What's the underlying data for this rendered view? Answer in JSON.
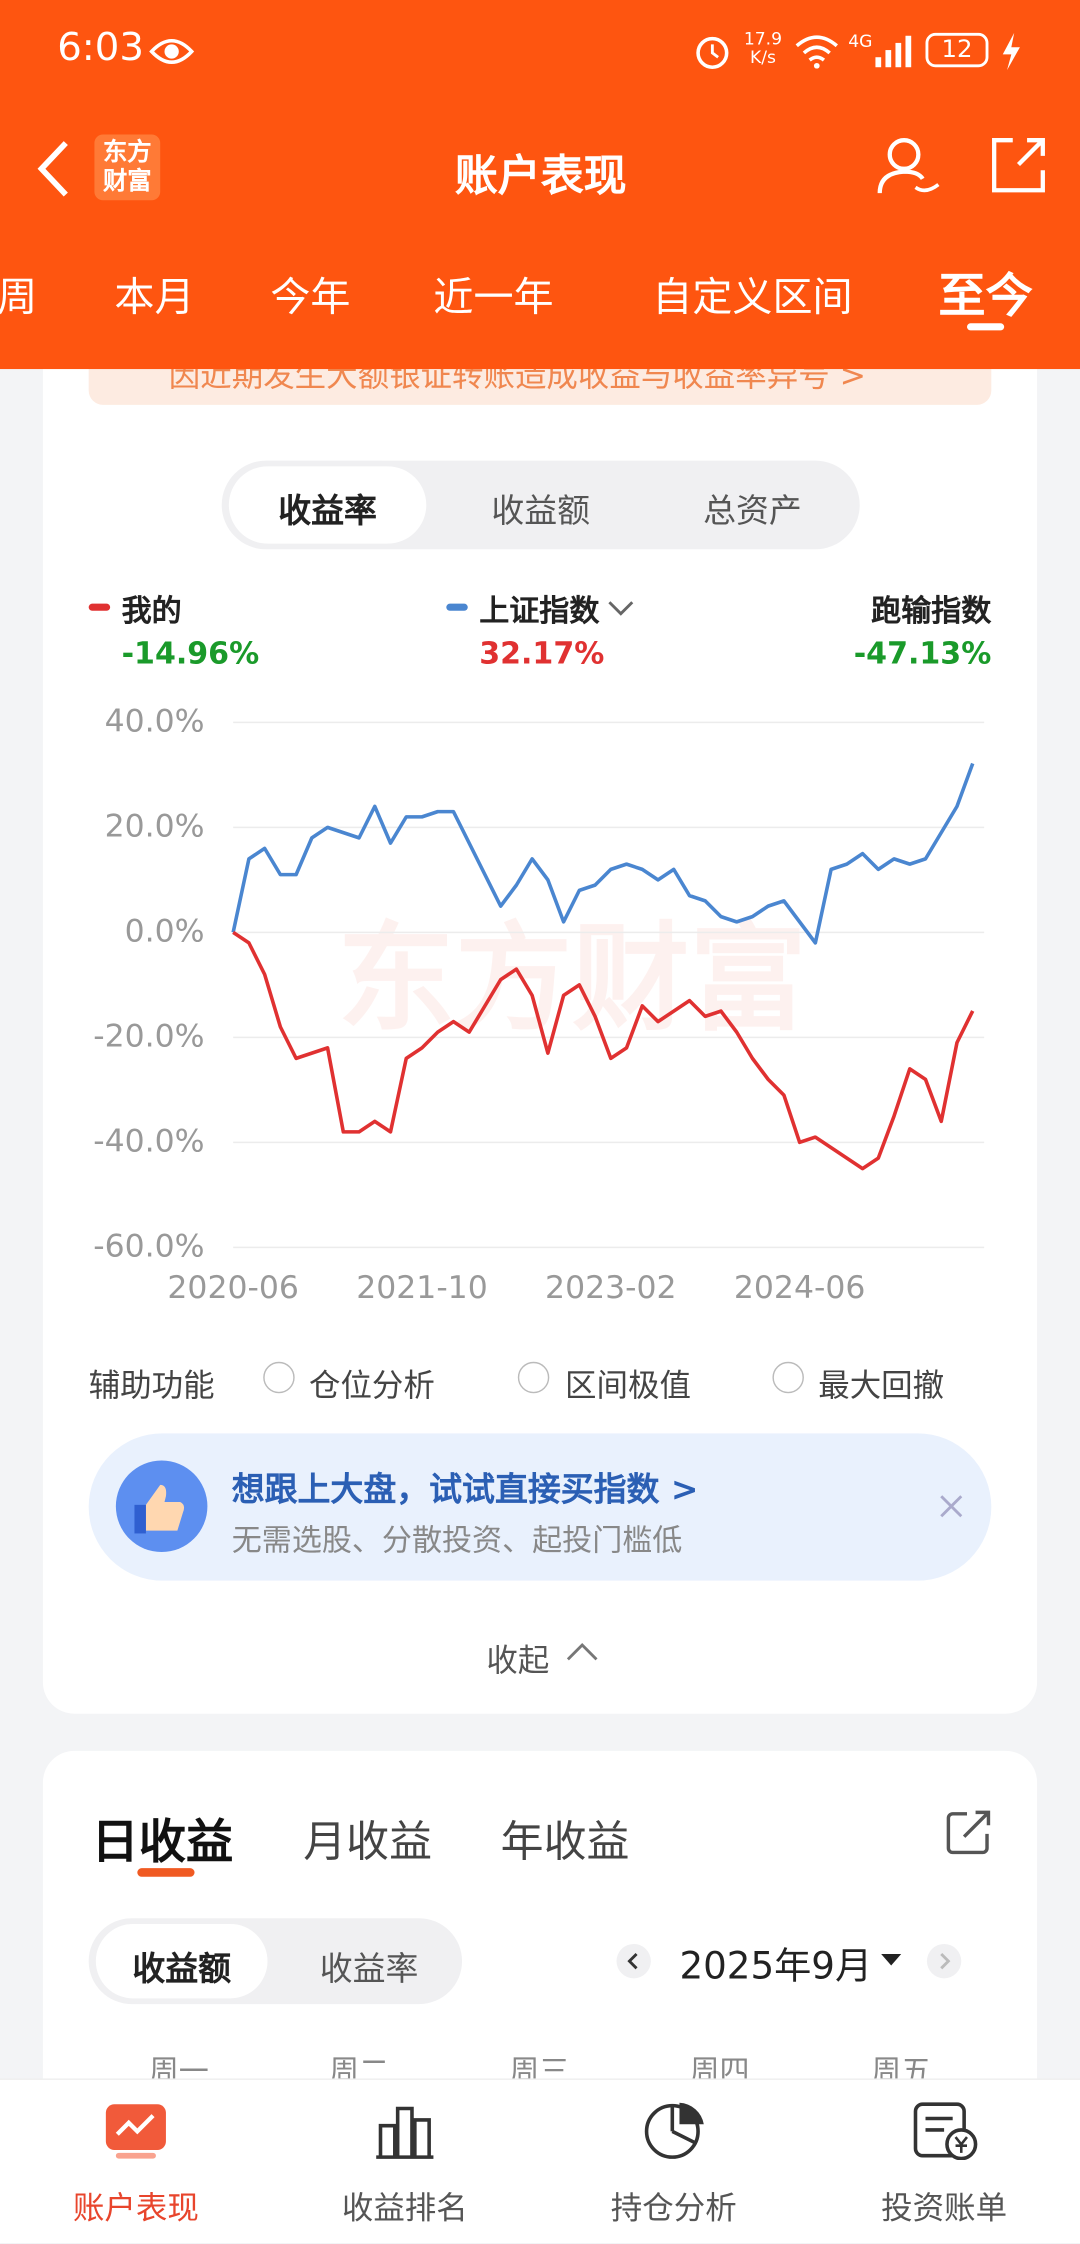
{
  "status": {
    "time": "6:03",
    "speed_value": "17.9",
    "speed_unit": "K/s",
    "signal": "4G",
    "battery": "12"
  },
  "header": {
    "logo_top": "东方",
    "logo_bottom": "财富",
    "title": "账户表现"
  },
  "period_tabs": [
    "周",
    "本月",
    "今年",
    "近一年",
    "自定义区间",
    "至今"
  ],
  "notice": "因近期发生大额银证转账造成收益与收益率异号 >",
  "metric_tabs": [
    "收益率",
    "收益额",
    "总资产"
  ],
  "relative": {
    "name": "跑输指数",
    "value": "-47.13%"
  },
  "chart_data": {
    "type": "line",
    "watermark": "东方财富",
    "categories": [
      "2020-06",
      null,
      null,
      null,
      null,
      null,
      null,
      null,
      null,
      null,
      null,
      null,
      "2021-10",
      null,
      null,
      null,
      null,
      null,
      null,
      null,
      null,
      null,
      null,
      null,
      "2023-02",
      null,
      null,
      null,
      null,
      null,
      null,
      null,
      null,
      null,
      null,
      null,
      "2024-06",
      null,
      null,
      null,
      null,
      null,
      null,
      null,
      null,
      null,
      null,
      null
    ],
    "series": [
      {
        "name": "我的",
        "color": "#e03131",
        "summary": "-14.96%",
        "summary_color": "#1a9a2a",
        "values": [
          0,
          -2,
          -8,
          -18,
          -24,
          -23,
          -22,
          -38,
          -38,
          -36,
          -38,
          -24,
          -22,
          -19,
          -17,
          -19,
          -14,
          -9,
          -7,
          -12,
          -23,
          -12,
          -10,
          -16,
          -24,
          -22,
          -14,
          -17,
          -15,
          -13,
          -16,
          -15,
          -19,
          -24,
          -28,
          -31,
          -40,
          -39,
          -41,
          -43,
          -45,
          -43,
          -35,
          -26,
          -28,
          -36,
          -21,
          -14.96
        ]
      },
      {
        "name": "上证指数",
        "color": "#4a86d0",
        "summary": "32.17%",
        "summary_color": "#e03131",
        "values": [
          0,
          14,
          16,
          11,
          11,
          18,
          20,
          19,
          18,
          24,
          17,
          22,
          22,
          23,
          23,
          17,
          11,
          5,
          9,
          14,
          10,
          2,
          8,
          9,
          12,
          13,
          12,
          10,
          12,
          7,
          6,
          3,
          2,
          3,
          5,
          6,
          2,
          -2,
          12,
          13,
          15,
          12,
          14,
          13,
          14,
          19,
          24,
          32.17
        ]
      }
    ],
    "ylim": [
      -60,
      40
    ],
    "yticks": [
      {
        "value": -60,
        "label": "-60.0%"
      },
      {
        "value": -40,
        "label": "-40.0%"
      },
      {
        "value": -20,
        "label": "-20.0%"
      },
      {
        "value": 0,
        "label": "0.0%"
      },
      {
        "value": 20,
        "label": "20.0%"
      },
      {
        "value": 40,
        "label": "40.0%"
      }
    ],
    "grid": true
  },
  "aux": {
    "label": "辅助功能",
    "options": [
      "仓位分析",
      "区间极值",
      "最大回撤"
    ]
  },
  "banner": {
    "title": "想跟上大盘，试试直接买指数 >",
    "subtitle": "无需选股、分散投资、起投门槛低"
  },
  "collapse": "收起",
  "daily": {
    "tabs": [
      "日收益",
      "月收益",
      "年收益"
    ],
    "toggle": [
      "收益额",
      "收益率"
    ],
    "month": "2025年9月",
    "weekdays": [
      "周一",
      "周二",
      "周三",
      "周四",
      "周五"
    ]
  },
  "nav": [
    "账户表现",
    "收益排名",
    "持仓分析",
    "投资账单"
  ]
}
